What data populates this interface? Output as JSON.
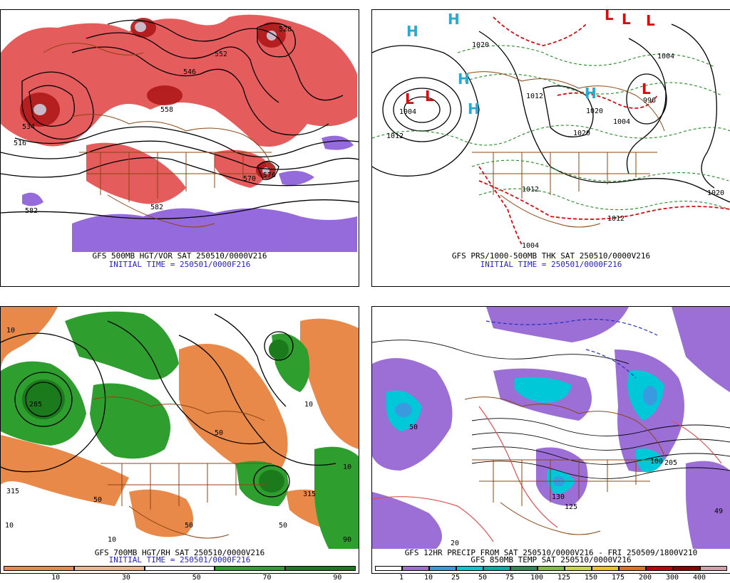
{
  "panels": [
    {
      "id": "p1",
      "title": "GFS 500MB HGT/VOR SAT 250510/0000V216",
      "subtitle": "INITIAL TIME = 250501/0000F216",
      "contour_labels": [
        "534",
        "516",
        "582",
        "552",
        "546",
        "558",
        "570",
        "576",
        "582",
        "528"
      ]
    },
    {
      "id": "p2",
      "title": "GFS PRS/1000-500MB THK SAT 250510/0000V216",
      "subtitle": "INITIAL TIME = 250501/0000F216",
      "contour_labels": [
        "1004",
        "1012",
        "1020",
        "1012",
        "1020",
        "1004",
        "1020",
        "1012",
        "1020",
        "1012",
        "1004",
        "996",
        "1004"
      ],
      "center_marks": [
        "H",
        "H",
        "H",
        "L",
        "L",
        "H",
        "H",
        "L",
        "L",
        "L",
        "L"
      ]
    },
    {
      "id": "p3",
      "title": "GFS 700MB HGT/RH SAT 250510/0000V216",
      "subtitle": "INITIAL TIME = 250501/0000F216",
      "contour_labels": [
        "10",
        "285",
        "315",
        "10",
        "50",
        "10",
        "50",
        "315",
        "10",
        "50",
        "10",
        "90",
        "50"
      ],
      "colorbar": {
        "labels": [
          "10",
          "30",
          "50",
          "70",
          "90"
        ],
        "colors": [
          "#e8894a",
          "#f0b48a",
          "#ffffff",
          "#2e9e2e",
          "#1b7a1b"
        ]
      }
    },
    {
      "id": "p4",
      "title": "GFS 12HR PRECIP FROM SAT 250510/0000V216 - FRI 250509/1800V210",
      "subtitle": "GFS 850MB TEMP SAT 250510/0000V216",
      "contour_labels": [
        "50",
        "130",
        "100",
        "125",
        "49",
        "205",
        "20"
      ],
      "colorbar": {
        "labels": [
          "1",
          "10",
          "25",
          "50",
          "75",
          "100",
          "125",
          "150",
          "175",
          "200",
          "300",
          "400"
        ],
        "colors": [
          "#ffffff",
          "#9b6fd6",
          "#3a9ae0",
          "#00c8d8",
          "#00b0a0",
          "#2e8b57",
          "#7bc043",
          "#c8d84a",
          "#f0c020",
          "#e07020",
          "#c00000",
          "#8a0000",
          "#d0a0a8"
        ]
      }
    }
  ]
}
